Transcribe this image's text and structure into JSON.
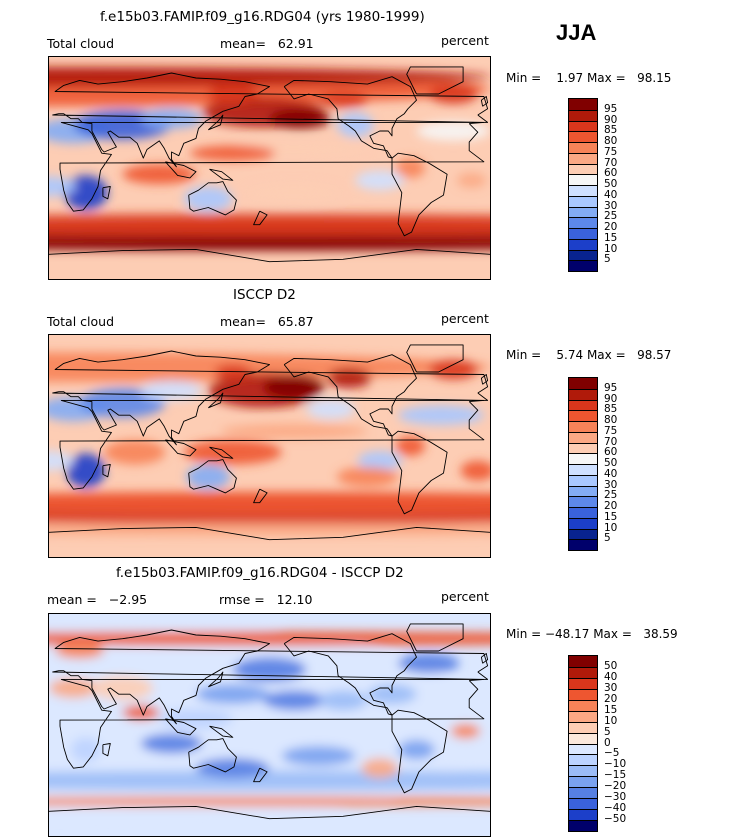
{
  "season": "JJA",
  "panels": [
    {
      "title": "f.e15b03.FAMIP.f09_g16.RDG04 (yrs 1980-1999)",
      "left_label": "Total cloud",
      "center_label": "mean=   62.91",
      "right_label": "percent",
      "range_text": "Min =    1.97 Max =   98.15",
      "colorbar_labels": [
        "95",
        "90",
        "85",
        "80",
        "75",
        "70",
        "60",
        "50",
        "40",
        "30",
        "25",
        "20",
        "15",
        "10",
        "5"
      ],
      "colors": [
        "#800000",
        "#b01a0a",
        "#d9361c",
        "#ee5630",
        "#f78358",
        "#fba884",
        "#fdcdb4",
        "#f6f6f6",
        "#cfe0ff",
        "#a9c8ff",
        "#83acf5",
        "#5d88ea",
        "#3a62dc",
        "#1c3fc9",
        "#08238f",
        "#00006b"
      ]
    },
    {
      "title": "ISCCP D2",
      "left_label": "Total cloud",
      "center_label": "mean=   65.87",
      "right_label": "percent",
      "range_text": "Min =    5.74 Max =   98.57",
      "colorbar_labels": [
        "95",
        "90",
        "85",
        "80",
        "75",
        "70",
        "60",
        "50",
        "40",
        "30",
        "25",
        "20",
        "15",
        "10",
        "5"
      ],
      "colors": [
        "#800000",
        "#b01a0a",
        "#d9361c",
        "#ee5630",
        "#f78358",
        "#fba884",
        "#fdcdb4",
        "#f6f6f6",
        "#cfe0ff",
        "#a9c8ff",
        "#83acf5",
        "#5d88ea",
        "#3a62dc",
        "#1c3fc9",
        "#08238f",
        "#00006b"
      ]
    },
    {
      "title": "f.e15b03.FAMIP.f09_g16.RDG04 - ISCCP D2",
      "left_label": "mean =   −2.95",
      "center_label": "rmse =   12.10",
      "right_label": "percent",
      "range_text": "Min = −48.17 Max =   38.59",
      "colorbar_labels": [
        "50",
        "40",
        "30",
        "20",
        "15",
        "10",
        "5",
        "0",
        "−5",
        "−10",
        "−15",
        "−20",
        "−30",
        "−40",
        "−50"
      ],
      "colors": [
        "#800000",
        "#b01a0a",
        "#d9361c",
        "#ee5630",
        "#f78358",
        "#fba884",
        "#fdcdb4",
        "#fbe8dc",
        "#dce8ff",
        "#bcd3ff",
        "#9bbcf7",
        "#7aa2ef",
        "#5680e3",
        "#3a62dc",
        "#1c3fc9",
        "#00006b"
      ]
    }
  ]
}
